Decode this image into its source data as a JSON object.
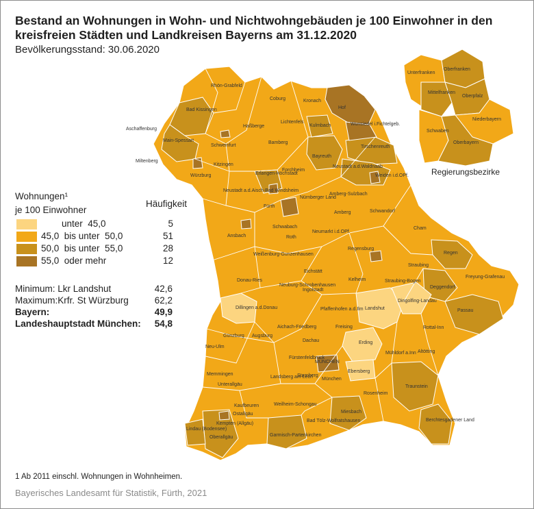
{
  "title": "Bestand an Wohnungen in Wohn- und Nichtwohngebäuden je 100 Einwohner in den kreisfreien Städten und Landkreisen Bayerns am 31.12.2020",
  "subtitle": "Bevölkerungsstand: 30.06.2020",
  "legend": {
    "title_line1": "Wohnungen¹",
    "title_line2": "je 100 Einwohner",
    "count_header": "Häufigkeit",
    "classes": [
      {
        "label": "unter  45,0",
        "count": "5",
        "color": "#fcd580"
      },
      {
        "label": "45,0  bis unter  50,0",
        "count": "51",
        "color": "#f2a818"
      },
      {
        "label": "50,0  bis unter  55,0",
        "count": "28",
        "color": "#c8911c"
      },
      {
        "label": "55,0  oder mehr",
        "count": "12",
        "color": "#a87424"
      }
    ]
  },
  "stats": {
    "min_label": "Minimum: Lkr Landshut",
    "min_value": "42,6",
    "max_label": "Maximum:Krfr. St Würzburg",
    "max_value": "62,2",
    "bayern_label": "Bayern:",
    "bayern_value": "49,9",
    "muc_label": "Landeshauptstadt München:",
    "muc_value": "54,8"
  },
  "inset_label": "Regierungsbezirke",
  "footnote": "1  Ab 2011 einschl. Wohnungen in Wohnheimen.",
  "source": "Bayerisches Landesamt für Statistik, Fürth, 2021",
  "regions": [
    "Rhön-Grabfeld",
    "Bad Kissingen",
    "Coburg",
    "Kronach",
    "Hof",
    "Lichtenfels",
    "Kulmbach",
    "Haßberge",
    "Schweinfurt",
    "Aschaffenburg",
    "Main-Spessart",
    "Miltenberg",
    "Würzburg",
    "Kitzingen",
    "Bamberg",
    "Bayreuth",
    "Wunsiedel i.Fichtelgeb.",
    "Tirschenreuth",
    "Neustadt a.d.Waldnaab",
    "Weiden i.d.OPf.",
    "Forchheim",
    "Erlangen-Höchstadt",
    "Neustadt a.d.Aisch-Bad Windsheim",
    "Fürth",
    "Nürnberger Land",
    "Amberg-Sulzbach",
    "Amberg",
    "Schwandorf",
    "Ansbach",
    "Schwabach",
    "Roth",
    "Neumarkt i.d.OPf.",
    "Cham",
    "Regensburg",
    "Regen",
    "Weißenburg-Gunzenhausen",
    "Eichstätt",
    "Straubing",
    "Freyung-Grafenau",
    "Donau-Ries",
    "Kelheim",
    "Straubing-Bogen",
    "Deggendorf",
    "Neuburg-Schrobenhausen",
    "Ingolstadt",
    "Dingolfing-Landau",
    "Dillingen a.d.Donau",
    "Landshut",
    "Passau",
    "Aichach-Friedberg",
    "Pfaffenhofen a.d.Ilm",
    "Freising",
    "Rottal-Inn",
    "Günzburg",
    "Augsburg",
    "Dachau",
    "Erding",
    "Neu-Ulm",
    "Fürstenfeldbruck",
    "München",
    "Mühldorf a.Inn",
    "Altötting",
    "Memmingen",
    "Unterallgäu",
    "Landsberg am Lech",
    "Starnberg",
    "Ebersberg",
    "Traunstein",
    "Rosenheim",
    "Kaufbeuren",
    "Ostallgäu",
    "Weilheim-Schongau",
    "Miesbach",
    "Lindau (Bodensee)",
    "Kempten (Allgäu)",
    "Oberallgäu",
    "Garmisch-Partenkirchen",
    "Bad Tölz-Wolfratshausen",
    "Berchtesgadener Land",
    "MÜNCHEN"
  ],
  "districts_inset": [
    "Unterfranken",
    "Oberfranken",
    "Mittelfranken",
    "Oberpfalz",
    "Niederbayern",
    "Schwaben",
    "Oberbayern"
  ]
}
